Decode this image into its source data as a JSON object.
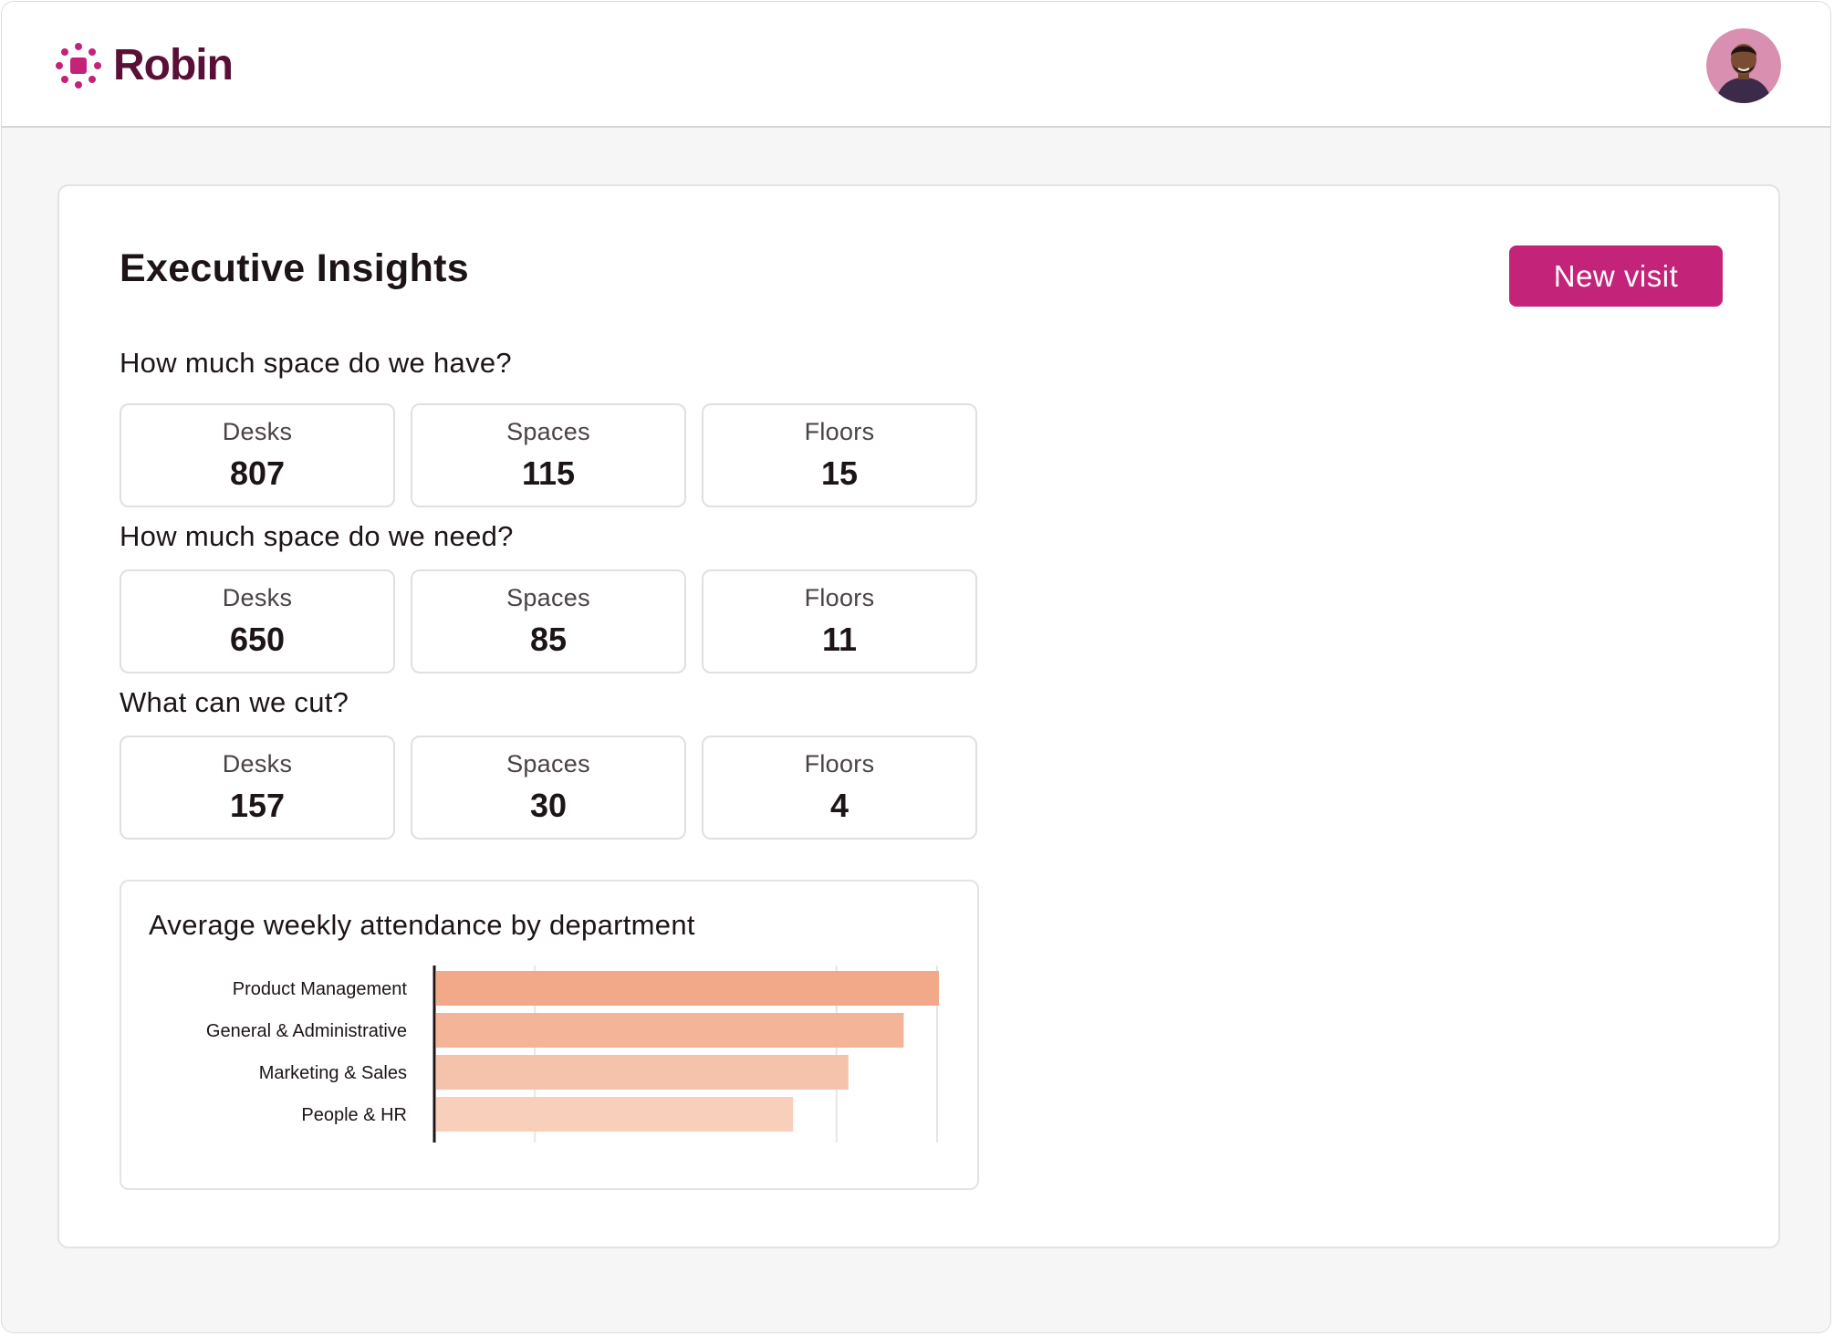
{
  "app": {
    "name": "Robin",
    "brand_color": "#5a1036",
    "accent_color": "#c4237a"
  },
  "header": {
    "logo_icon": "robin-logo-icon",
    "avatar_icon": "user-avatar"
  },
  "main": {
    "title": "Executive Insights",
    "new_visit_label": "New visit",
    "sections": [
      {
        "title": "How much space do we have?",
        "stats": [
          {
            "label": "Desks",
            "value": "807"
          },
          {
            "label": "Spaces",
            "value": "115"
          },
          {
            "label": "Floors",
            "value": "15"
          }
        ]
      },
      {
        "title": "How much space do we need?",
        "stats": [
          {
            "label": "Desks",
            "value": "650"
          },
          {
            "label": "Spaces",
            "value": "85"
          },
          {
            "label": "Floors",
            "value": "11"
          }
        ]
      },
      {
        "title": "What can we cut?",
        "stats": [
          {
            "label": "Desks",
            "value": "157"
          },
          {
            "label": "Spaces",
            "value": "30"
          },
          {
            "label": "Floors",
            "value": "4"
          }
        ]
      }
    ]
  },
  "chart_data": {
    "type": "bar",
    "orientation": "horizontal",
    "title": "Average weekly attendance by department",
    "categories": [
      "Product Management",
      "General & Administrative",
      "Marketing & Sales",
      "People & HR"
    ],
    "values": [
      1.0,
      0.93,
      0.82,
      0.71
    ],
    "xlim": [
      0,
      1.0
    ],
    "grid": true,
    "colors": [
      "#f2a98a",
      "#f4b498",
      "#f5c3ab",
      "#f7cfbb"
    ]
  }
}
